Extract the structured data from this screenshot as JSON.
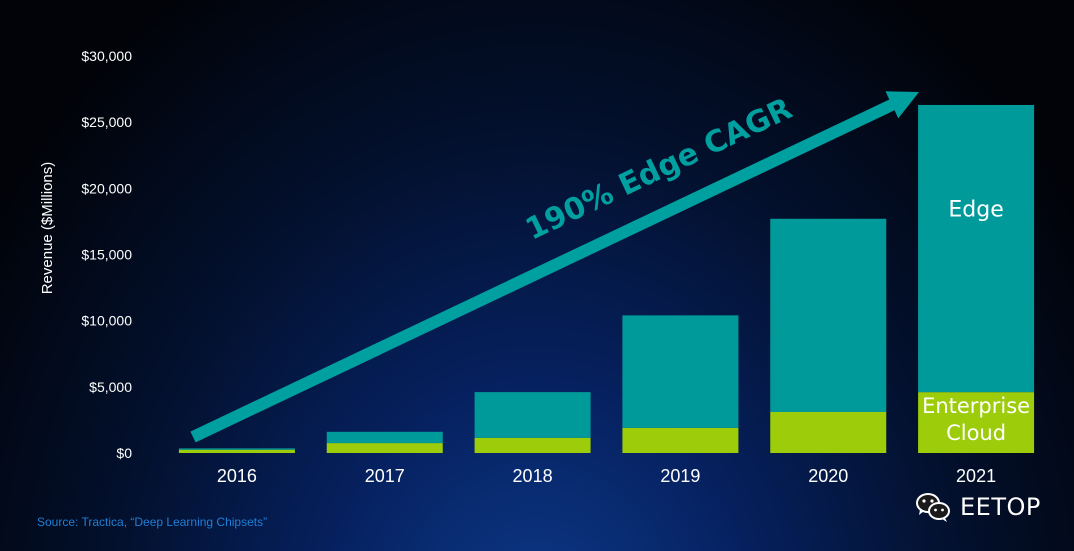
{
  "chart_data": {
    "type": "bar",
    "stacked": true,
    "categories": [
      "2016",
      "2017",
      "2018",
      "2019",
      "2020",
      "2021"
    ],
    "series": [
      {
        "name": "Enterprise Cloud",
        "values": [
          250,
          750,
          1150,
          1900,
          3100,
          4600
        ],
        "color": "#9ccc0a"
      },
      {
        "name": "Edge",
        "values": [
          100,
          850,
          3450,
          8500,
          14600,
          21700
        ],
        "color": "#009a9a"
      }
    ],
    "ylabel": "Revenue ($Millions)",
    "xlabel": "",
    "ylim": [
      0,
      30000
    ],
    "yticks": [
      "$0",
      "$5,000",
      "$10,000",
      "$15,000",
      "$20,000",
      "$25,000",
      "$30,000"
    ],
    "ytick_values": [
      0,
      5000,
      10000,
      15000,
      20000,
      25000,
      30000
    ],
    "grid": false,
    "annotations": {
      "arrow_text": "190% Edge CAGR",
      "arrow_color": "#00a0a0"
    }
  },
  "source": "Source: Tractica, “Deep Learning Chipsets”",
  "watermark": {
    "text": "EETOP",
    "icon": "wechat-icon"
  },
  "colors": {
    "axis_text": "#ffffff",
    "bar_label_text": "#ffffff",
    "source_text": "#1f7fd6",
    "arrow": "#00a0a0"
  }
}
